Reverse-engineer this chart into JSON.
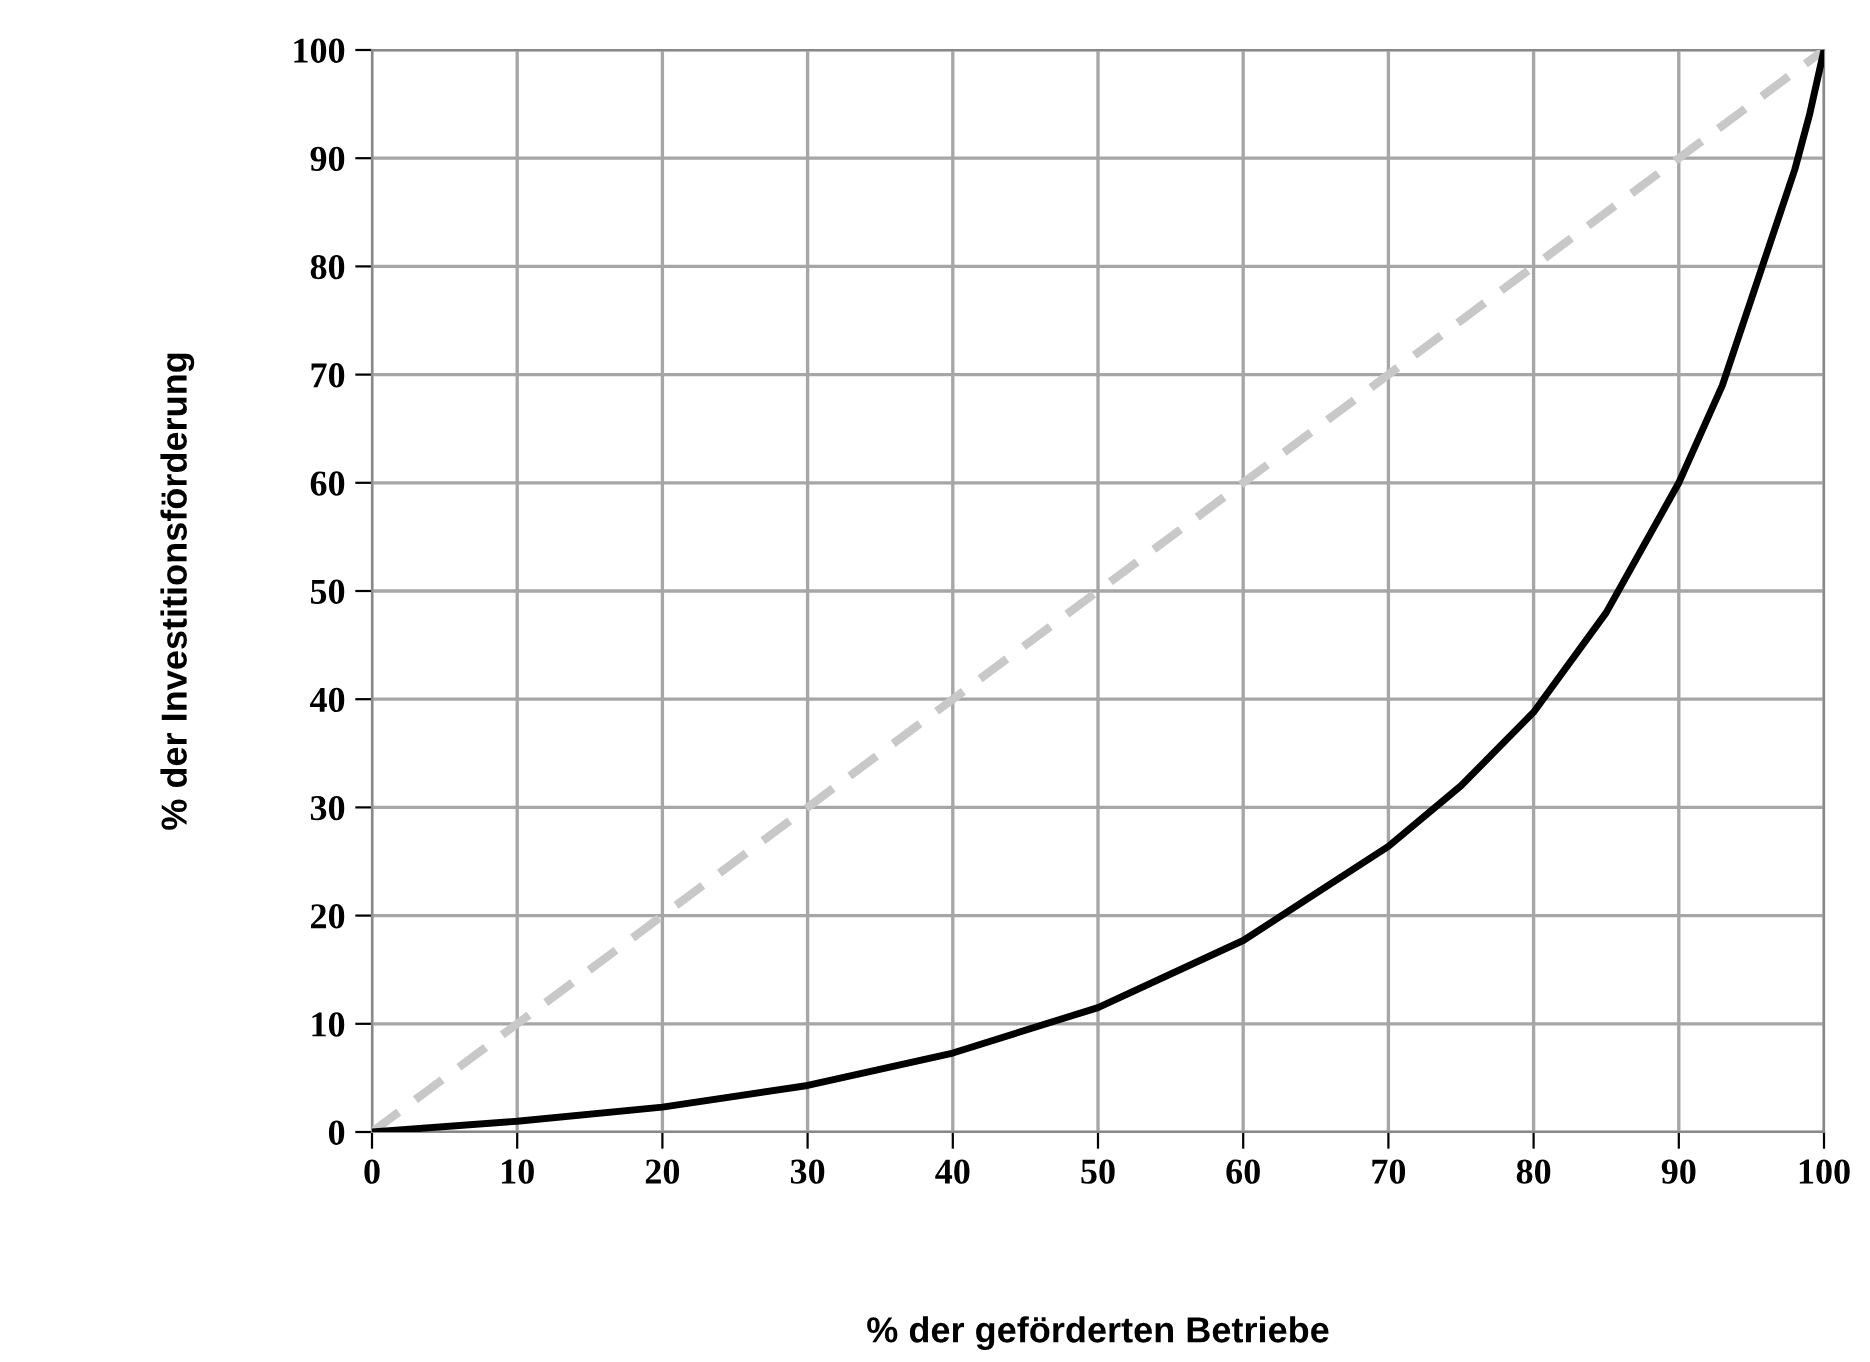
{
  "chart_data": {
    "type": "line",
    "xlabel": "% der geförderten Betriebe",
    "ylabel": "% der Investitionsförderung",
    "xlim": [
      0,
      100
    ],
    "ylim": [
      0,
      100
    ],
    "xticks": [
      0,
      10,
      20,
      30,
      40,
      50,
      60,
      70,
      80,
      90,
      100
    ],
    "yticks": [
      0,
      10,
      20,
      30,
      40,
      50,
      60,
      70,
      80,
      90,
      100
    ],
    "grid": true,
    "series": [
      {
        "color": "#c8c8c8",
        "line_style": "dashed",
        "x": [
          0,
          100
        ],
        "values": [
          0,
          100
        ]
      },
      {
        "color": "#000000",
        "line_style": "solid",
        "x": [
          0,
          10,
          20,
          30,
          40,
          50,
          60,
          70,
          75,
          80,
          85,
          90,
          93,
          95,
          97,
          98,
          99,
          100
        ],
        "values": [
          0,
          1,
          2.3,
          4.3,
          7.3,
          11.5,
          17.7,
          26.4,
          32,
          38.8,
          48,
          60,
          69,
          77,
          85,
          89,
          94,
          100
        ]
      }
    ]
  }
}
